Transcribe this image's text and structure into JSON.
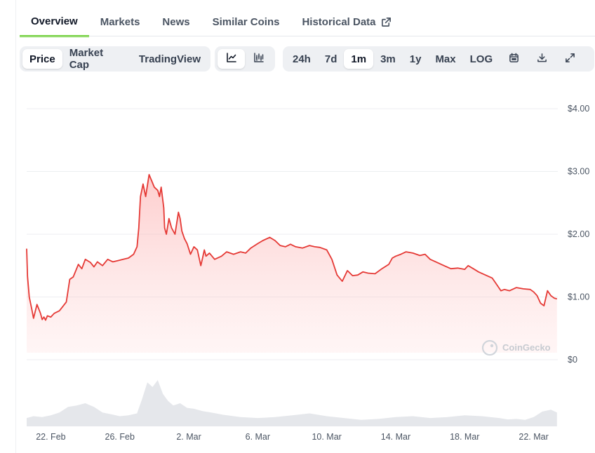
{
  "tabs": [
    {
      "label": "Overview",
      "active": true
    },
    {
      "label": "Markets",
      "active": false
    },
    {
      "label": "News",
      "active": false
    },
    {
      "label": "Similar Coins",
      "active": false
    },
    {
      "label": "Historical Data",
      "active": false,
      "icon": "external-link-icon"
    }
  ],
  "toolbar": {
    "views": [
      {
        "label": "Price",
        "active": true
      },
      {
        "label": "Market Cap",
        "active": false
      },
      {
        "label": "TradingView",
        "active": false
      }
    ],
    "chart_types": [
      {
        "icon": "line-chart-icon",
        "active": true
      },
      {
        "icon": "candlestick-chart-icon",
        "active": false
      }
    ],
    "ranges": [
      {
        "label": "24h",
        "active": false
      },
      {
        "label": "7d",
        "active": false
      },
      {
        "label": "1m",
        "active": true
      },
      {
        "label": "3m",
        "active": false
      },
      {
        "label": "1y",
        "active": false
      },
      {
        "label": "Max",
        "active": false
      },
      {
        "label": "LOG",
        "active": false
      }
    ],
    "tools": [
      "calendar-icon",
      "download-icon",
      "expand-icon"
    ]
  },
  "watermark": "CoinGecko",
  "colors": {
    "line": "#e53935",
    "fill": "#fdd5d5",
    "volume": "#e5e7eb",
    "accent_tab": "#4bcc00"
  },
  "chart_data": {
    "type": "area",
    "title": "",
    "xlabel": "",
    "ylabel": "",
    "x_ticks": [
      "22. Feb",
      "26. Feb",
      "2. Mar",
      "6. Mar",
      "10. Mar",
      "14. Mar",
      "18. Mar",
      "22. Mar"
    ],
    "y_ticks": [
      "$0",
      "$1.00",
      "$2.00",
      "$3.00",
      "$4.00"
    ],
    "ylim": [
      0,
      4
    ],
    "x_day_range": [
      20.6,
      51.4
    ],
    "grid": true,
    "legend": "none",
    "series": [
      {
        "values_note": "",
        "x": [
          20.6,
          20.65,
          20.75,
          20.9,
          21.0,
          21.2,
          21.4,
          21.5,
          21.6,
          21.7,
          21.8,
          22.0,
          22.2,
          22.5,
          22.9,
          23.1,
          23.3,
          23.6,
          23.8,
          24.0,
          24.3,
          24.5,
          24.7,
          25.0,
          25.3,
          25.6,
          25.9,
          26.2,
          26.5,
          26.8,
          27.0,
          27.1,
          27.2,
          27.35,
          27.5,
          27.7,
          27.85,
          28.0,
          28.2,
          28.3,
          28.4,
          28.55,
          28.6,
          28.7,
          28.85,
          29.0,
          29.2,
          29.4,
          29.5,
          29.6,
          29.75,
          29.9,
          30.1,
          30.3,
          30.5,
          30.7,
          30.8,
          30.9,
          31.0,
          31.2,
          31.5,
          31.9,
          32.2,
          32.6,
          33.0,
          33.3,
          33.6,
          34.0,
          34.3,
          34.7,
          35.0,
          35.3,
          35.6,
          35.9,
          36.2,
          36.6,
          37.0,
          37.3,
          37.6,
          38.0,
          38.3,
          38.6,
          38.9,
          39.2,
          39.5,
          39.8,
          40.1,
          40.4,
          40.8,
          41.2,
          41.6,
          41.8,
          42.0,
          42.3,
          42.6,
          43.0,
          43.4,
          43.7,
          44.0,
          44.4,
          44.8,
          45.2,
          45.6,
          46.0,
          46.2,
          46.5,
          46.8,
          47.2,
          47.6,
          47.9,
          48.1,
          48.3,
          48.6,
          49.0,
          49.4,
          49.8,
          50.0,
          50.2,
          50.4,
          50.6,
          50.8,
          51.0,
          51.2,
          51.35
        ],
        "values": [
          1.77,
          1.33,
          1.0,
          0.8,
          0.66,
          0.88,
          0.74,
          0.64,
          0.68,
          0.63,
          0.7,
          0.68,
          0.74,
          0.78,
          0.92,
          1.28,
          1.32,
          1.52,
          1.45,
          1.6,
          1.55,
          1.48,
          1.56,
          1.5,
          1.6,
          1.56,
          1.58,
          1.6,
          1.62,
          1.68,
          1.8,
          2.1,
          2.6,
          2.8,
          2.6,
          2.95,
          2.85,
          2.75,
          2.7,
          2.6,
          2.75,
          2.42,
          2.1,
          2.0,
          2.25,
          2.1,
          2.0,
          2.35,
          2.25,
          2.05,
          1.93,
          1.85,
          1.68,
          1.8,
          1.75,
          1.5,
          1.62,
          1.75,
          1.65,
          1.7,
          1.6,
          1.65,
          1.72,
          1.68,
          1.72,
          1.7,
          1.78,
          1.85,
          1.9,
          1.95,
          1.9,
          1.82,
          1.8,
          1.84,
          1.8,
          1.78,
          1.82,
          1.8,
          1.79,
          1.75,
          1.6,
          1.35,
          1.25,
          1.42,
          1.34,
          1.35,
          1.4,
          1.38,
          1.37,
          1.45,
          1.52,
          1.62,
          1.65,
          1.68,
          1.72,
          1.7,
          1.66,
          1.68,
          1.6,
          1.55,
          1.5,
          1.45,
          1.46,
          1.44,
          1.5,
          1.45,
          1.4,
          1.35,
          1.3,
          1.18,
          1.1,
          1.12,
          1.1,
          1.15,
          1.13,
          1.12,
          1.08,
          1.02,
          0.9,
          0.86,
          1.1,
          1.02,
          0.98,
          0.97
        ]
      }
    ],
    "volume": {
      "x": [
        20.6,
        21.0,
        21.5,
        22.0,
        22.5,
        23.0,
        23.5,
        24.0,
        24.5,
        25.0,
        25.5,
        26.0,
        26.5,
        27.0,
        27.3,
        27.6,
        27.9,
        28.2,
        28.5,
        28.8,
        29.1,
        29.5,
        29.9,
        30.3,
        30.8,
        31.3,
        32.0,
        33.0,
        34.0,
        35.0,
        36.0,
        37.0,
        38.0,
        39.0,
        40.0,
        41.0,
        42.0,
        43.0,
        44.0,
        45.0,
        46.0,
        47.0,
        48.0,
        48.5,
        49.0,
        49.5,
        50.0,
        50.5,
        51.0,
        51.35
      ],
      "values": [
        0.18,
        0.22,
        0.2,
        0.24,
        0.3,
        0.42,
        0.45,
        0.5,
        0.42,
        0.3,
        0.26,
        0.22,
        0.24,
        0.28,
        0.6,
        0.95,
        0.85,
        1.0,
        0.7,
        0.55,
        0.45,
        0.5,
        0.4,
        0.38,
        0.33,
        0.3,
        0.25,
        0.2,
        0.18,
        0.2,
        0.24,
        0.28,
        0.22,
        0.18,
        0.14,
        0.16,
        0.2,
        0.22,
        0.18,
        0.2,
        0.24,
        0.22,
        0.18,
        0.15,
        0.16,
        0.14,
        0.2,
        0.32,
        0.36,
        0.3
      ]
    }
  }
}
